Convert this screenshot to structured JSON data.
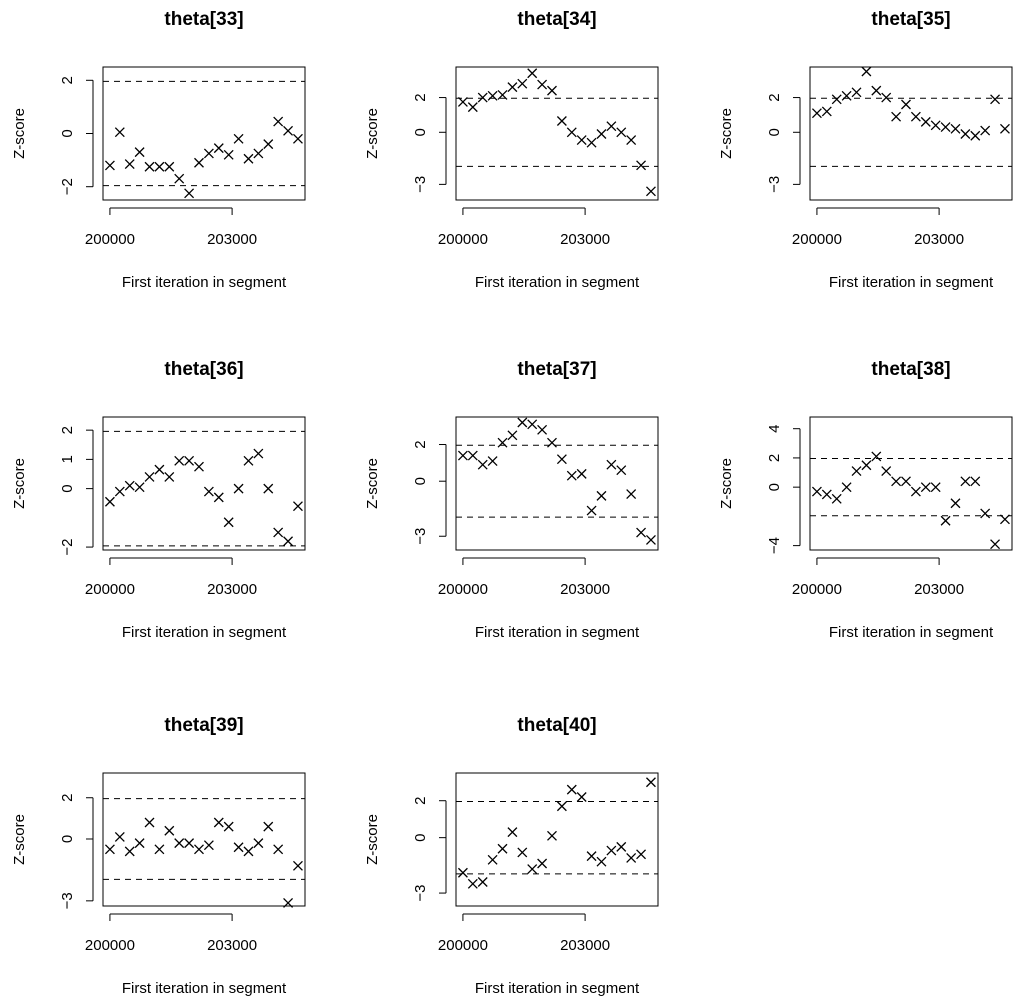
{
  "chart_data": [
    {
      "type": "scatter",
      "title": "theta[33]",
      "x_label": "First iteration in segment",
      "y_label": "Z-score",
      "marker": "x",
      "color": "#000000",
      "x": [
        200000,
        200243,
        200486,
        200729,
        200972,
        201215,
        201458,
        201701,
        201944,
        202187,
        202430,
        202673,
        202916,
        203159,
        203402,
        203645,
        203888,
        204131,
        204374,
        204617
      ],
      "values": [
        -1.2,
        0.05,
        -1.15,
        -0.7,
        -1.25,
        -1.25,
        -1.25,
        -1.7,
        -2.25,
        -1.1,
        -0.75,
        -0.55,
        -0.8,
        -0.2,
        -0.95,
        -0.75,
        -0.4,
        0.45,
        0.1,
        -0.2
      ],
      "xlim": [
        199830,
        204790
      ],
      "xticks": [
        200000,
        203000
      ],
      "ylim": [
        -2.5,
        2.5
      ],
      "yticks": [
        {
          "value": -2,
          "label": "−2"
        },
        0,
        2
      ],
      "reference_lines": [
        -1.96,
        1.96
      ]
    },
    {
      "type": "scatter",
      "title": "theta[34]",
      "x_label": "First iteration in segment",
      "y_label": "Z-score",
      "marker": "x",
      "color": "#000000",
      "x": [
        200000,
        200243,
        200486,
        200729,
        200972,
        201215,
        201458,
        201701,
        201944,
        202187,
        202430,
        202673,
        202916,
        203159,
        203402,
        203645,
        203888,
        204131,
        204374,
        204617
      ],
      "values": [
        1.75,
        1.45,
        2.0,
        2.1,
        2.15,
        2.6,
        2.8,
        3.4,
        2.75,
        2.4,
        0.65,
        0.0,
        -0.45,
        -0.6,
        -0.1,
        0.35,
        0.0,
        -0.45,
        -1.9,
        -3.4
      ],
      "xlim": [
        199830,
        204790
      ],
      "xticks": [
        200000,
        203000
      ],
      "ylim": [
        -3.9,
        3.76
      ],
      "yticks": [
        {
          "value": -3,
          "label": "−3"
        },
        0,
        2
      ],
      "reference_lines": [
        -1.96,
        1.96
      ]
    },
    {
      "type": "scatter",
      "title": "theta[35]",
      "x_label": "First iteration in segment",
      "y_label": "Z-score",
      "marker": "x",
      "color": "#000000",
      "x": [
        200000,
        200243,
        200486,
        200729,
        200972,
        201215,
        201458,
        201701,
        201944,
        202187,
        202430,
        202673,
        202916,
        203159,
        203402,
        203645,
        203888,
        204131,
        204374,
        204617
      ],
      "values": [
        1.1,
        1.2,
        1.9,
        2.1,
        2.3,
        3.5,
        2.4,
        2.0,
        0.9,
        1.6,
        0.9,
        0.6,
        0.4,
        0.3,
        0.2,
        -0.1,
        -0.2,
        0.1,
        1.9,
        0.2
      ],
      "xlim": [
        199830,
        204790
      ],
      "xticks": [
        200000,
        203000
      ],
      "ylim": [
        -3.9,
        3.76
      ],
      "yticks": [
        {
          "value": -3,
          "label": "−3"
        },
        0,
        2
      ],
      "reference_lines": [
        -1.96,
        1.96
      ]
    },
    {
      "type": "scatter",
      "title": "theta[36]",
      "x_label": "First iteration in segment",
      "y_label": "Z-score",
      "marker": "x",
      "color": "#000000",
      "x": [
        200000,
        200243,
        200486,
        200729,
        200972,
        201215,
        201458,
        201701,
        201944,
        202187,
        202430,
        202673,
        202916,
        203159,
        203402,
        203645,
        203888,
        204131,
        204374,
        204617
      ],
      "values": [
        -0.45,
        -0.1,
        0.1,
        0.05,
        0.4,
        0.65,
        0.4,
        0.95,
        0.95,
        0.75,
        -0.1,
        -0.3,
        -1.15,
        0.0,
        0.95,
        1.2,
        0.0,
        -1.5,
        -1.8,
        -0.6
      ],
      "xlim": [
        199830,
        204790
      ],
      "xticks": [
        200000,
        203000
      ],
      "ylim": [
        -2.1,
        2.45
      ],
      "yticks": [
        {
          "value": -2,
          "label": "−2"
        },
        0,
        1,
        2
      ],
      "reference_lines": [
        -1.96,
        1.96
      ]
    },
    {
      "type": "scatter",
      "title": "theta[37]",
      "x_label": "First iteration in segment",
      "y_label": "Z-score",
      "marker": "x",
      "color": "#000000",
      "x": [
        200000,
        200243,
        200486,
        200729,
        200972,
        201215,
        201458,
        201701,
        201944,
        202187,
        202430,
        202673,
        202916,
        203159,
        203402,
        203645,
        203888,
        204131,
        204374,
        204617
      ],
      "values": [
        1.4,
        1.4,
        0.9,
        1.1,
        2.1,
        2.5,
        3.2,
        3.1,
        2.8,
        2.1,
        1.2,
        0.3,
        0.4,
        -1.6,
        -0.8,
        0.9,
        0.6,
        -0.7,
        -2.8,
        -3.2
      ],
      "xlim": [
        199830,
        204790
      ],
      "xticks": [
        200000,
        203000
      ],
      "ylim": [
        -3.75,
        3.5
      ],
      "yticks": [
        {
          "value": -3,
          "label": "−3"
        },
        0,
        2
      ],
      "reference_lines": [
        -1.96,
        1.96
      ]
    },
    {
      "type": "scatter",
      "title": "theta[38]",
      "x_label": "First iteration in segment",
      "y_label": "Z-score",
      "marker": "x",
      "color": "#000000",
      "x": [
        200000,
        200243,
        200486,
        200729,
        200972,
        201215,
        201458,
        201701,
        201944,
        202187,
        202430,
        202673,
        202916,
        203159,
        203402,
        203645,
        203888,
        204131,
        204374,
        204617
      ],
      "values": [
        -0.3,
        -0.5,
        -0.8,
        0.0,
        1.1,
        1.5,
        2.1,
        1.1,
        0.4,
        0.4,
        -0.3,
        0.0,
        0.0,
        -2.3,
        -1.1,
        0.4,
        0.4,
        -1.8,
        -3.9,
        -2.2
      ],
      "xlim": [
        199830,
        204790
      ],
      "xticks": [
        200000,
        203000
      ],
      "ylim": [
        -4.3,
        4.8
      ],
      "yticks": [
        {
          "value": -4,
          "label": "−4"
        },
        0,
        2,
        4
      ],
      "reference_lines": [
        -1.96,
        1.96
      ]
    },
    {
      "type": "scatter",
      "title": "theta[39]",
      "x_label": "First iteration in segment",
      "y_label": "Z-score",
      "marker": "x",
      "color": "#000000",
      "x": [
        200000,
        200243,
        200486,
        200729,
        200972,
        201215,
        201458,
        201701,
        201944,
        202187,
        202430,
        202673,
        202916,
        203159,
        203402,
        203645,
        203888,
        204131,
        204374,
        204617
      ],
      "values": [
        -0.5,
        0.1,
        -0.6,
        -0.2,
        0.8,
        -0.5,
        0.4,
        -0.2,
        -0.2,
        -0.5,
        -0.3,
        0.8,
        0.6,
        -0.4,
        -0.6,
        -0.2,
        0.6,
        -0.5,
        -3.1,
        -1.3
      ],
      "xlim": [
        199830,
        204790
      ],
      "xticks": [
        200000,
        203000
      ],
      "ylim": [
        -3.25,
        3.2
      ],
      "yticks": [
        {
          "value": -3,
          "label": "−3"
        },
        0,
        2
      ],
      "reference_lines": [
        -1.96,
        1.96
      ]
    },
    {
      "type": "scatter",
      "title": "theta[40]",
      "x_label": "First iteration in segment",
      "y_label": "Z-score",
      "marker": "x",
      "color": "#000000",
      "x": [
        200000,
        200243,
        200486,
        200729,
        200972,
        201215,
        201458,
        201701,
        201944,
        202187,
        202430,
        202673,
        202916,
        203159,
        203402,
        203645,
        203888,
        204131,
        204374,
        204617
      ],
      "values": [
        -1.9,
        -2.5,
        -2.4,
        -1.2,
        -0.6,
        0.3,
        -0.8,
        -1.7,
        -1.4,
        0.1,
        1.7,
        2.6,
        2.2,
        -1.0,
        -1.3,
        -0.7,
        -0.5,
        -1.1,
        -0.9,
        3.0
      ],
      "xlim": [
        199830,
        204790
      ],
      "xticks": [
        200000,
        203000
      ],
      "ylim": [
        -3.7,
        3.5
      ],
      "yticks": [
        {
          "value": -3,
          "label": "−3"
        },
        0,
        2
      ],
      "reference_lines": [
        -1.96,
        1.96
      ]
    }
  ]
}
